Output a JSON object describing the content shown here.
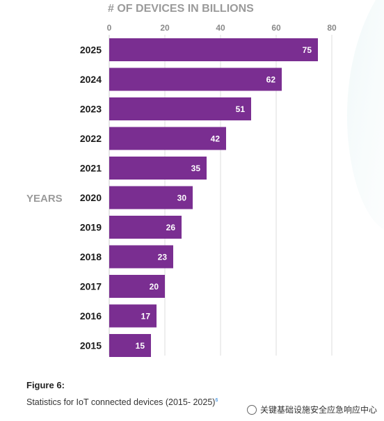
{
  "chart_data": {
    "type": "bar",
    "orientation": "horizontal",
    "title": "# OF DEVICES IN BILLIONS",
    "ylabel": "YEARS",
    "xlabel": "",
    "categories": [
      "2025",
      "2024",
      "2023",
      "2022",
      "2021",
      "2020",
      "2019",
      "2018",
      "2017",
      "2016",
      "2015"
    ],
    "values": [
      75,
      62,
      51,
      42,
      35,
      30,
      26,
      23,
      20,
      17,
      15
    ],
    "xlim": [
      0,
      80
    ],
    "xticks": [
      0,
      20,
      40,
      60,
      80
    ],
    "axis_position": "top",
    "grid": true,
    "bar_color": "#7a2e91"
  },
  "figure": {
    "label": "Figure 6:",
    "caption": "Statistics for IoT connected devices (2015- 2025)",
    "footnote_mark": "6"
  },
  "watermark": {
    "text": "关键基础设施安全应急响应中心"
  }
}
